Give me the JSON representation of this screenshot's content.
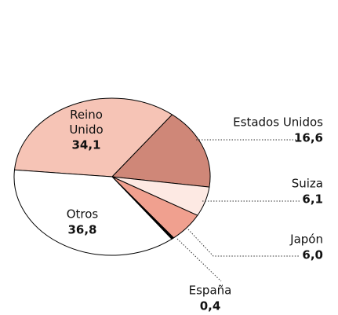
{
  "chart_data": {
    "type": "pie",
    "categories": [
      "Reino Unido",
      "Estados Unidos",
      "Suiza",
      "Japón",
      "España",
      "Otros"
    ],
    "values": [
      34.1,
      16.6,
      6.1,
      6.0,
      0.4,
      36.8
    ],
    "value_labels": [
      "34,1",
      "16,6",
      "6,1",
      "6,0",
      "0,4",
      "36,8"
    ],
    "colors": [
      "#f6c4b6",
      "#cf8778",
      "#fde9e3",
      "#f0a08f",
      "#000000",
      "#ffffff"
    ]
  }
}
